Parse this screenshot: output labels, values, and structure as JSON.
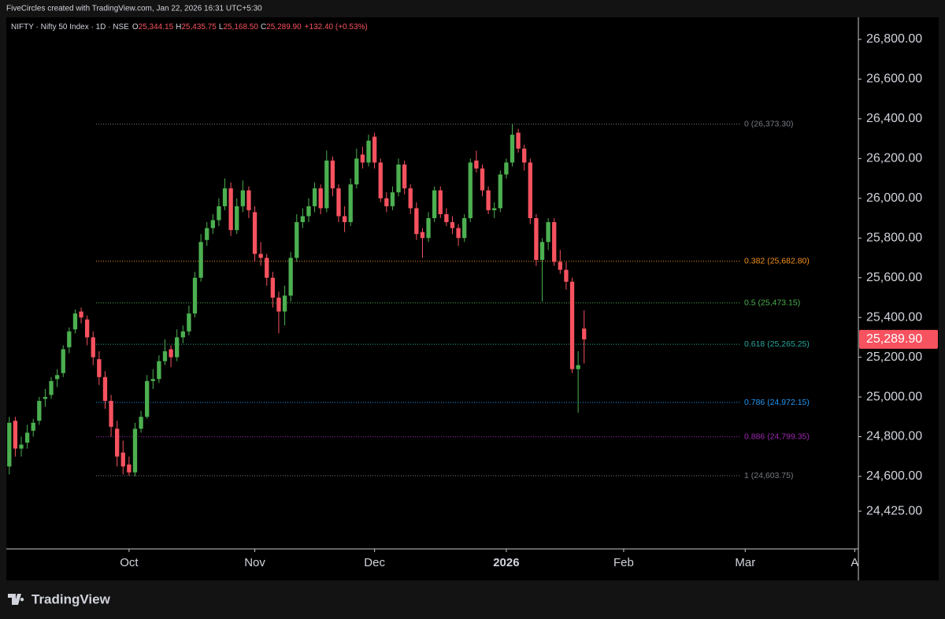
{
  "header": {
    "credit": "FiveCircles created with TradingView.com, Jan 22, 2026 16:31 UTC+5:30",
    "brand": "TradingView"
  },
  "chart_data": {
    "type": "candlestick",
    "symbol": "NIFTY · Nifty 50 Index · 1D · NSE",
    "ohlc_letters": [
      "O",
      "H",
      "L",
      "C"
    ],
    "last_labels": [
      "25,344.15",
      "25,435.75",
      "25,168.50",
      "25,289.90"
    ],
    "change_label": "+132.40 (+0.53%)",
    "up_color": "#4caf50",
    "down_color": "#f7525f",
    "open": [
      24650,
      24880,
      24740,
      24770,
      24830,
      24880,
      24990,
      25010,
      25090,
      25120,
      25250,
      25340,
      25430,
      25390,
      25300,
      25190,
      25100,
      24980,
      24840,
      24720,
      24660,
      24620,
      24840,
      24900,
      25080,
      25090,
      25180,
      25240,
      25200,
      25300,
      25330,
      25420,
      25600,
      25790,
      25850,
      25890,
      25960,
      26050,
      25840,
      25960,
      26040,
      25930,
      25720,
      25700,
      25600,
      25500,
      25430,
      25510,
      25700,
      25880,
      25910,
      25960,
      26050,
      25950,
      26190,
      26050,
      25910,
      25880,
      26070,
      26220,
      26180,
      26310,
      26180,
      26000,
      25960,
      26030,
      26170,
      26050,
      25950,
      25830,
      25800,
      25900,
      26040,
      25920,
      25880,
      25850,
      25800,
      25900,
      26190,
      26150,
      26040,
      25940,
      25950,
      26120,
      26180,
      26330,
      26250,
      26180,
      25900,
      25690,
      25780,
      25880,
      25680,
      25640,
      25580,
      25140,
      25344.15
    ],
    "high": [
      24900,
      24900,
      24800,
      24860,
      24890,
      25000,
      25040,
      25100,
      25140,
      25260,
      25350,
      25440,
      25450,
      25410,
      25330,
      25230,
      25130,
      25010,
      24880,
      24780,
      24700,
      24870,
      24930,
      25110,
      25140,
      25210,
      25290,
      25260,
      25340,
      25360,
      25460,
      25630,
      25820,
      25880,
      25920,
      26000,
      26100,
      26080,
      26000,
      26090,
      26060,
      25960,
      25780,
      25720,
      25630,
      25530,
      25560,
      25730,
      25920,
      25950,
      26000,
      26080,
      26070,
      26240,
      26210,
      26070,
      25960,
      26100,
      26250,
      26260,
      26320,
      26330,
      26200,
      26030,
      26060,
      26200,
      26190,
      26070,
      25980,
      25850,
      25930,
      26060,
      26060,
      25950,
      25910,
      25870,
      25920,
      26200,
      26240,
      26170,
      26060,
      25980,
      26140,
      26200,
      26373.3,
      26350,
      26270,
      26200,
      25920,
      25800,
      25900,
      25900,
      25740,
      25680,
      25600,
      25230,
      25435.75
    ],
    "low": [
      24610,
      24700,
      24700,
      24740,
      24800,
      24860,
      24950,
      24990,
      25050,
      25100,
      25220,
      25320,
      25370,
      25260,
      25160,
      25060,
      24940,
      24800,
      24650,
      24610,
      24603.75,
      24600,
      24820,
      24890,
      25040,
      25070,
      25160,
      25150,
      25180,
      25270,
      25310,
      25400,
      25580,
      25760,
      25820,
      25860,
      25940,
      25810,
      25820,
      25930,
      25900,
      25680,
      25660,
      25560,
      25450,
      25320,
      25360,
      25480,
      25680,
      25850,
      25880,
      25930,
      25920,
      25930,
      26010,
      25880,
      25830,
      25860,
      26050,
      26150,
      26160,
      26150,
      25980,
      25930,
      25940,
      26010,
      26020,
      25920,
      25790,
      25700,
      25780,
      25880,
      25900,
      25860,
      25820,
      25760,
      25780,
      25880,
      26130,
      26010,
      25920,
      25900,
      25930,
      26100,
      26160,
      26230,
      26140,
      25870,
      25660,
      25480,
      25740,
      25660,
      25620,
      25540,
      25120,
      24920,
      25168.5
    ],
    "close": [
      24870,
      24740,
      24760,
      24820,
      24870,
      24980,
      25000,
      25080,
      25110,
      25240,
      25330,
      25420,
      25400,
      25300,
      25200,
      25100,
      24980,
      24850,
      24700,
      24650,
      24620,
      24840,
      24900,
      25080,
      25090,
      25180,
      25230,
      25200,
      25300,
      25330,
      25420,
      25600,
      25780,
      25850,
      25890,
      25960,
      26050,
      25840,
      25960,
      26040,
      25940,
      25720,
      25700,
      25600,
      25500,
      25430,
      25510,
      25700,
      25880,
      25910,
      25960,
      26050,
      25950,
      26190,
      26050,
      25910,
      25880,
      26070,
      26200,
      26180,
      26290,
      26180,
      26000,
      25960,
      26030,
      26170,
      26050,
      25950,
      25820,
      25800,
      25900,
      26040,
      25920,
      25880,
      25850,
      25800,
      25900,
      26180,
      26150,
      26040,
      25940,
      25950,
      26120,
      26180,
      26320,
      26250,
      26180,
      25900,
      25690,
      25780,
      25880,
      25680,
      25640,
      25580,
      25140,
      25160,
      25289.9
    ],
    "xlim": [
      -0.5,
      141.8
    ],
    "xticks": [
      {
        "value": 20,
        "label": "Oct"
      },
      {
        "value": 41,
        "label": "Nov"
      },
      {
        "value": 61,
        "label": "Dec"
      },
      {
        "value": 83,
        "label": "2026"
      },
      {
        "value": 102.6,
        "label": "Feb"
      },
      {
        "value": 122.9,
        "label": "Mar"
      },
      {
        "value": 141.2,
        "label": "A"
      }
    ],
    "ylim": [
      24235,
      26911
    ],
    "yticks": [
      {
        "value": 26800,
        "label": "26,800.00"
      },
      {
        "value": 26600,
        "label": "26,600.00"
      },
      {
        "value": 26400,
        "label": "26,400.00"
      },
      {
        "value": 26200,
        "label": "26,200.00"
      },
      {
        "value": 26000,
        "label": "26,000.00"
      },
      {
        "value": 25800,
        "label": "25,800.00"
      },
      {
        "value": 25600,
        "label": "25,600.00"
      },
      {
        "value": 25400,
        "label": "25,400.00"
      },
      {
        "value": 25200,
        "label": "25,200.00"
      },
      {
        "value": 25000,
        "label": "25,000.00"
      },
      {
        "value": 24800,
        "label": "24,800.00"
      },
      {
        "value": 24600,
        "label": "24,600.00"
      },
      {
        "value": 24425,
        "label": "24,425.00"
      }
    ],
    "fib_levels": [
      {
        "label": "0 (26,373.30)",
        "value": 26373.3,
        "color": "#787b86"
      },
      {
        "label": "0.382 (25,682.80)",
        "value": 25682.8,
        "color": "#f7931a"
      },
      {
        "label": "0.5 (25,473.15)",
        "value": 25473.15,
        "color": "#4caf50"
      },
      {
        "label": "0.618 (25,265.25)",
        "value": 25265.25,
        "color": "#26a69a"
      },
      {
        "label": "0.786 (24,972.15)",
        "value": 24972.15,
        "color": "#2196f3"
      },
      {
        "label": "0.886 (24,799.35)",
        "value": 24799.35,
        "color": "#9c27b0"
      },
      {
        "label": "1 (24,603.75)",
        "value": 24603.75,
        "color": "#787b86"
      }
    ]
  }
}
